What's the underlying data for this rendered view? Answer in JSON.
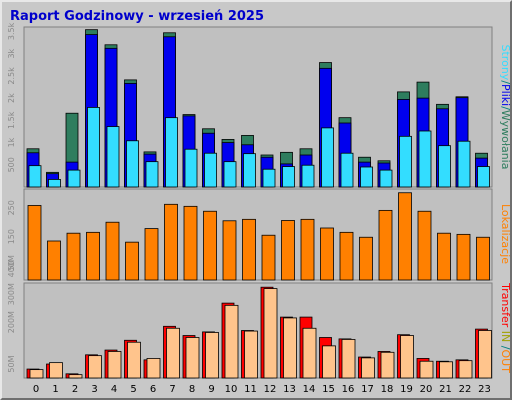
{
  "title": "Raport Godzinowy -  wrzesień 2025",
  "colors": {
    "wywolania": "#2e7d5e",
    "strony": "#0000ee",
    "pliki": "#33ddff",
    "odwiedziny": "#ff8000",
    "in": "#ff0000",
    "out": "#ffc48c",
    "label_sep": "#008080"
  },
  "chart_data": [
    {
      "type": "bar",
      "name": "top",
      "categories": [
        "0",
        "1",
        "2",
        "3",
        "4",
        "5",
        "6",
        "7",
        "8",
        "9",
        "10",
        "11",
        "12",
        "13",
        "14",
        "15",
        "16",
        "17",
        "18",
        "19",
        "20",
        "21",
        "22",
        "23"
      ],
      "y_ticks": [
        "3.5k",
        "3k",
        "2.5k",
        "2k",
        "1.5k",
        "1k",
        "500"
      ],
      "series": [
        {
          "name": "Wywołania",
          "values": [
            860,
            330,
            1660,
            3540,
            3200,
            2410,
            790,
            3470,
            1630,
            1310,
            1070,
            1160,
            720,
            780,
            860,
            2800,
            1560,
            670,
            590,
            2140,
            2360,
            1860,
            2030,
            760
          ]
        },
        {
          "name": "Strony",
          "values": [
            770,
            300,
            560,
            3430,
            3120,
            2330,
            740,
            3380,
            1600,
            1210,
            1000,
            950,
            670,
            520,
            720,
            2670,
            1440,
            560,
            540,
            1970,
            2000,
            1760,
            2010,
            650
          ]
        },
        {
          "name": "Pliki",
          "values": [
            480,
            170,
            380,
            1790,
            1360,
            1040,
            570,
            1560,
            850,
            760,
            570,
            750,
            400,
            460,
            490,
            1330,
            760,
            450,
            380,
            1140,
            1260,
            930,
            1030,
            460
          ]
        }
      ],
      "side_label": [
        "Strony",
        "/",
        "Pliki",
        "/",
        "Wywołania"
      ]
    },
    {
      "type": "bar",
      "name": "middle",
      "categories": [
        "0",
        "1",
        "2",
        "3",
        "4",
        "5",
        "6",
        "7",
        "8",
        "9",
        "10",
        "11",
        "12",
        "13",
        "14",
        "15",
        "16",
        "17",
        "18",
        "19",
        "20",
        "21",
        "22",
        "23"
      ],
      "y_ticks": [
        "250",
        "150",
        "50"
      ],
      "series": [
        {
          "name": "Odwiedziny",
          "values": [
            258,
            135,
            162,
            165,
            200,
            131,
            178,
            262,
            255,
            238,
            205,
            210,
            155,
            206,
            210,
            180,
            165,
            148,
            241,
            302,
            238,
            162,
            158,
            148
          ]
        }
      ],
      "side_label": [
        "Lokalizacje"
      ]
    },
    {
      "type": "bar",
      "name": "bottom",
      "categories": [
        "0",
        "1",
        "2",
        "3",
        "4",
        "5",
        "6",
        "7",
        "8",
        "9",
        "10",
        "11",
        "12",
        "13",
        "14",
        "15",
        "16",
        "17",
        "18",
        "19",
        "20",
        "21",
        "22",
        "23"
      ],
      "y_ticks": [
        "400M",
        "300M",
        "200M",
        "50M"
      ],
      "series": [
        {
          "name": "IN",
          "values": [
            32,
            50,
            15,
            83,
            100,
            135,
            65,
            185,
            152,
            165,
            268,
            170,
            325,
            218,
            218,
            145,
            140,
            75,
            95,
            155,
            70,
            60,
            65,
            175
          ]
        },
        {
          "name": "OUT",
          "values": [
            30,
            55,
            12,
            80,
            95,
            128,
            70,
            178,
            145,
            163,
            260,
            168,
            320,
            215,
            178,
            115,
            138,
            72,
            92,
            152,
            60,
            58,
            62,
            170
          ]
        }
      ],
      "side_label": [
        "Transfer",
        " IN ",
        "/",
        "OUT"
      ]
    }
  ]
}
